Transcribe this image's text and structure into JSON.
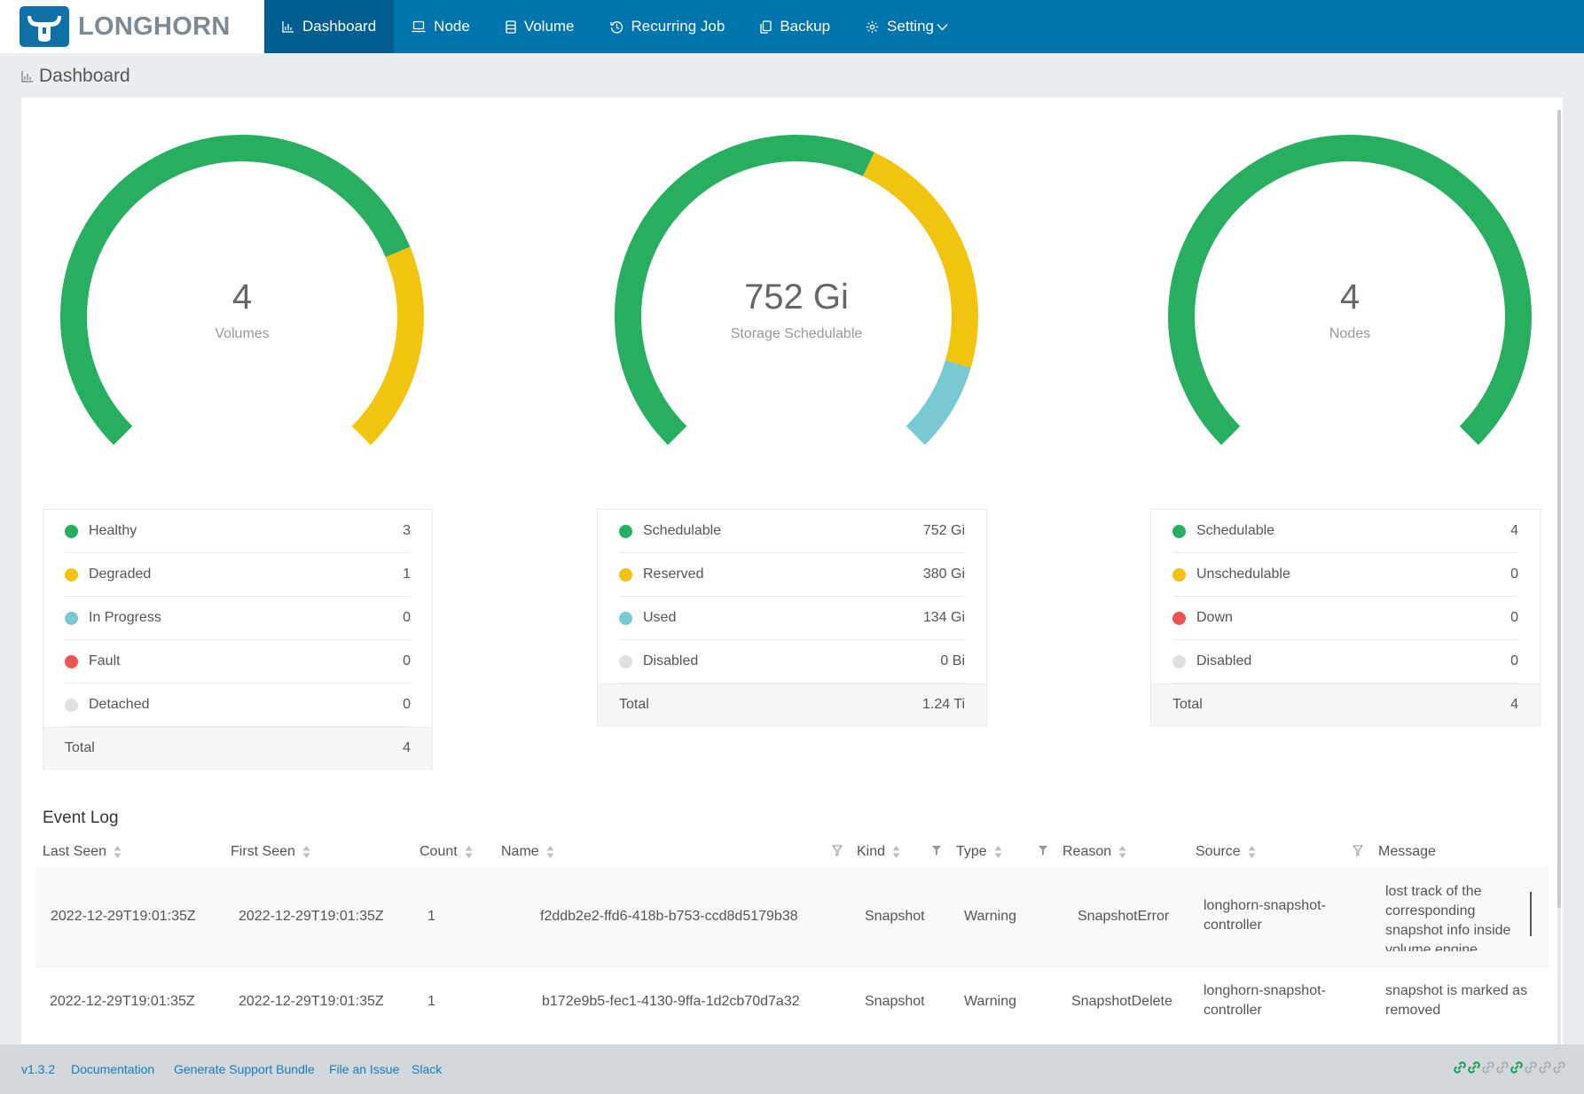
{
  "app": {
    "name": "LONGHORN"
  },
  "nav": [
    {
      "label": "Dashboard",
      "icon": "bar-chart-icon",
      "active": true
    },
    {
      "label": "Node",
      "icon": "laptop-icon"
    },
    {
      "label": "Volume",
      "icon": "database-icon"
    },
    {
      "label": "Recurring Job",
      "icon": "history-icon"
    },
    {
      "label": "Backup",
      "icon": "copy-icon"
    },
    {
      "label": "Setting",
      "icon": "gear-icon"
    }
  ],
  "page": {
    "title": "Dashboard"
  },
  "colors": {
    "green": "#27ae60",
    "yellow": "#f1c40f",
    "blue": "#78c9d2",
    "red": "#f15354",
    "grey": "#dee1e3",
    "brand": "#0074ad"
  },
  "gauges": {
    "volumes": {
      "value": "4",
      "label": "Volumes",
      "segments": [
        3,
        1,
        0,
        0,
        0
      ]
    },
    "storage": {
      "value": "752 Gi",
      "label": "Storage Schedulable",
      "segments": [
        752,
        380,
        134,
        0
      ]
    },
    "nodes": {
      "value": "4",
      "label": "Nodes",
      "segments": [
        4,
        0,
        0,
        0
      ]
    }
  },
  "legends": {
    "volumes": {
      "items": [
        {
          "label": "Healthy",
          "value": "3",
          "color": "#27ae60"
        },
        {
          "label": "Degraded",
          "value": "1",
          "color": "#f1c40f"
        },
        {
          "label": "In Progress",
          "value": "0",
          "color": "#78c9d2"
        },
        {
          "label": "Fault",
          "value": "0",
          "color": "#f15354"
        },
        {
          "label": "Detached",
          "value": "0",
          "color": "#dee1e3"
        }
      ],
      "total_label": "Total",
      "total_value": "4"
    },
    "storage": {
      "items": [
        {
          "label": "Schedulable",
          "value": "752 Gi",
          "color": "#27ae60"
        },
        {
          "label": "Reserved",
          "value": "380 Gi",
          "color": "#f1c40f"
        },
        {
          "label": "Used",
          "value": "134 Gi",
          "color": "#78c9d2"
        },
        {
          "label": "Disabled",
          "value": "0 Bi",
          "color": "#dee1e3"
        }
      ],
      "total_label": "Total",
      "total_value": "1.24 Ti"
    },
    "nodes": {
      "items": [
        {
          "label": "Schedulable",
          "value": "4",
          "color": "#27ae60"
        },
        {
          "label": "Unschedulable",
          "value": "0",
          "color": "#f1c40f"
        },
        {
          "label": "Down",
          "value": "0",
          "color": "#f15354"
        },
        {
          "label": "Disabled",
          "value": "0",
          "color": "#dee1e3"
        }
      ],
      "total_label": "Total",
      "total_value": "4"
    }
  },
  "event_log": {
    "title": "Event Log",
    "columns": [
      "Last Seen",
      "First Seen",
      "Count",
      "Name",
      "Kind",
      "Type",
      "Reason",
      "Source",
      "Message"
    ],
    "rows": [
      {
        "last_seen": "2022-12-29T19:01:35Z",
        "first_seen": "2022-12-29T19:01:35Z",
        "count": "1",
        "name": "f2ddb2e2-ffd6-418b-b753-ccd8d5179b38",
        "kind": "Snapshot",
        "type": "Warning",
        "reason": "SnapshotError",
        "source_line1": "longhorn-snapshot-",
        "source_line2": "controller",
        "message_lines": [
          "lost track of the",
          "corresponding",
          "snapshot info inside",
          "volume engine"
        ]
      },
      {
        "last_seen": "2022-12-29T19:01:35Z",
        "first_seen": "2022-12-29T19:01:35Z",
        "count": "1",
        "name": "b172e9b5-fec1-4130-9ffa-1d2cb70d7a32",
        "kind": "Snapshot",
        "type": "Warning",
        "reason": "SnapshotDelete",
        "source_line1": "longhorn-snapshot-",
        "source_line2": "controller",
        "message_lines": [
          "snapshot is marked as",
          "removed"
        ]
      }
    ]
  },
  "footer": {
    "version": "v1.3.2",
    "links": [
      "Documentation",
      "Generate Support Bundle",
      "File an Issue",
      "Slack"
    ]
  }
}
